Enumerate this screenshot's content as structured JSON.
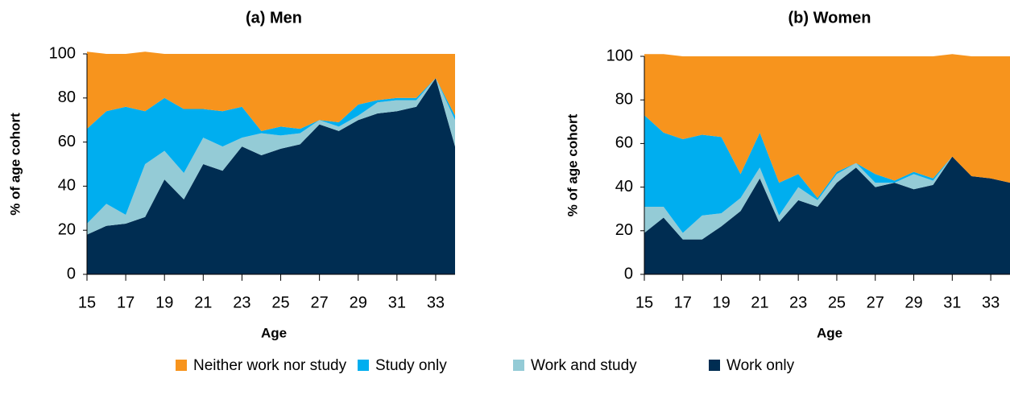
{
  "chart_data": [
    {
      "type": "stacked_area",
      "title": "(a) Men",
      "x_label": "Age",
      "y_label": "% of age cohort",
      "x": [
        15,
        16,
        17,
        18,
        19,
        20,
        21,
        22,
        23,
        24,
        25,
        26,
        27,
        28,
        29,
        30,
        31,
        32,
        33,
        34
      ],
      "xlim": [
        15,
        34
      ],
      "xticks": [
        15,
        17,
        19,
        21,
        23,
        25,
        27,
        29,
        31,
        33
      ],
      "ylim": [
        0,
        100
      ],
      "yticks": [
        0,
        20,
        40,
        60,
        80,
        100
      ],
      "series": [
        {
          "name": "Neither work nor study",
          "color": "#f7941d",
          "values": [
            35,
            26,
            24,
            27,
            20,
            25,
            25,
            26,
            24,
            35,
            33,
            34,
            30,
            31,
            23,
            21,
            20,
            20,
            11,
            28
          ]
        },
        {
          "name": "Study only",
          "color": "#00aeef",
          "values": [
            43,
            42,
            49,
            24,
            24,
            29,
            13,
            16,
            14,
            1,
            4,
            2,
            0,
            2,
            5,
            1,
            1,
            1,
            0,
            2
          ]
        },
        {
          "name": "Work and study",
          "color": "#94cbd6",
          "values": [
            5,
            10,
            4,
            24,
            13,
            12,
            12,
            11,
            4,
            10,
            6,
            5,
            2,
            2,
            2,
            5,
            5,
            3,
            0,
            12
          ]
        },
        {
          "name": "Work only",
          "color": "#002d52",
          "values": [
            18,
            22,
            23,
            26,
            43,
            34,
            50,
            47,
            58,
            54,
            57,
            59,
            68,
            65,
            70,
            73,
            74,
            76,
            89,
            58
          ]
        }
      ]
    },
    {
      "type": "stacked_area",
      "title": "(b) Women",
      "x_label": "Age",
      "y_label": "% of age cohort",
      "x": [
        15,
        16,
        17,
        18,
        19,
        20,
        21,
        22,
        23,
        24,
        25,
        26,
        27,
        28,
        29,
        30,
        31,
        32,
        33,
        34
      ],
      "xlim": [
        15,
        34
      ],
      "xticks": [
        15,
        17,
        19,
        21,
        23,
        25,
        27,
        29,
        31,
        33
      ],
      "ylim": [
        0,
        100
      ],
      "yticks": [
        0,
        20,
        40,
        60,
        80,
        100
      ],
      "series": [
        {
          "name": "Neither work nor study",
          "color": "#f7941d",
          "values": [
            28,
            36,
            38,
            36,
            37,
            54,
            35,
            58,
            54,
            65,
            53,
            49,
            54,
            57,
            53,
            56,
            47,
            55,
            56,
            58
          ]
        },
        {
          "name": "Study only",
          "color": "#00aeef",
          "values": [
            42,
            34,
            43,
            37,
            35,
            11,
            16,
            15,
            6,
            1,
            1,
            0,
            4,
            1,
            1,
            1,
            0,
            0,
            0,
            0
          ]
        },
        {
          "name": "Work and study",
          "color": "#94cbd6",
          "values": [
            12,
            5,
            3,
            11,
            6,
            6,
            5,
            3,
            6,
            3,
            4,
            2,
            2,
            0,
            7,
            2,
            0,
            0,
            0,
            0
          ]
        },
        {
          "name": "Work only",
          "color": "#002d52",
          "values": [
            19,
            26,
            16,
            16,
            22,
            29,
            44,
            24,
            34,
            31,
            42,
            49,
            40,
            42,
            39,
            41,
            54,
            45,
            44,
            42
          ]
        }
      ]
    }
  ]
}
